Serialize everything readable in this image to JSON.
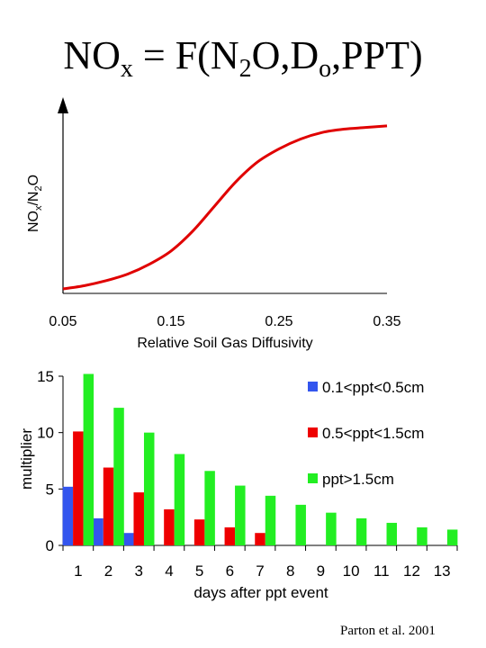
{
  "title": {
    "prefix": "NO",
    "sub1": "x",
    "middle": " = F(N",
    "sub2": "2",
    "after": "O,D",
    "sub3": "o",
    "suffix": ",PPT)"
  },
  "citation": "Parton et al. 2001",
  "chart_data": [
    {
      "type": "line",
      "xlabel": "Relative Soil Gas Diffusivity",
      "ylabel": "NOx/N2O",
      "ylabel_parts": {
        "a": "NO",
        "sub1": "x",
        "b": "/N",
        "sub2": "2",
        "c": "O"
      },
      "xlim": [
        0.05,
        0.35
      ],
      "xticks": [
        "0.05",
        "0.15",
        "0.25",
        "0.35"
      ],
      "yticks": [],
      "grid": false,
      "color": "#e00000",
      "series": [
        {
          "x": [
            0.05,
            0.07,
            0.09,
            0.11,
            0.13,
            0.15,
            0.17,
            0.19,
            0.21,
            0.23,
            0.25,
            0.27,
            0.29,
            0.31,
            0.33,
            0.35
          ],
          "y": [
            0.0,
            0.02,
            0.05,
            0.09,
            0.15,
            0.23,
            0.35,
            0.5,
            0.65,
            0.77,
            0.85,
            0.91,
            0.95,
            0.97,
            0.98,
            0.99
          ]
        }
      ]
    },
    {
      "type": "bar",
      "xlabel": "days after ppt event",
      "ylabel": "multiplier",
      "ylim": [
        0,
        15
      ],
      "yticks": [
        0,
        5,
        10,
        15
      ],
      "categories": [
        "1",
        "2",
        "3",
        "4",
        "5",
        "6",
        "7",
        "8",
        "9",
        "10",
        "11",
        "12",
        "13"
      ],
      "grid": false,
      "legend_position": "top-right",
      "series": [
        {
          "name": "0.1<ppt<0.5cm",
          "color": "#3355ee",
          "values": [
            5.2,
            2.4,
            1.1,
            null,
            null,
            null,
            null,
            null,
            null,
            null,
            null,
            null,
            null
          ]
        },
        {
          "name": "0.5<ppt<1.5cm",
          "color": "#ee0000",
          "values": [
            10.1,
            6.9,
            4.7,
            3.2,
            2.3,
            1.6,
            1.1,
            null,
            null,
            null,
            null,
            null,
            null
          ]
        },
        {
          "name": "ppt>1.5cm",
          "color": "#22ee22",
          "values": [
            15.2,
            12.2,
            10.0,
            8.1,
            6.6,
            5.3,
            4.4,
            3.6,
            2.9,
            2.4,
            2.0,
            1.6,
            1.4
          ]
        }
      ]
    }
  ]
}
